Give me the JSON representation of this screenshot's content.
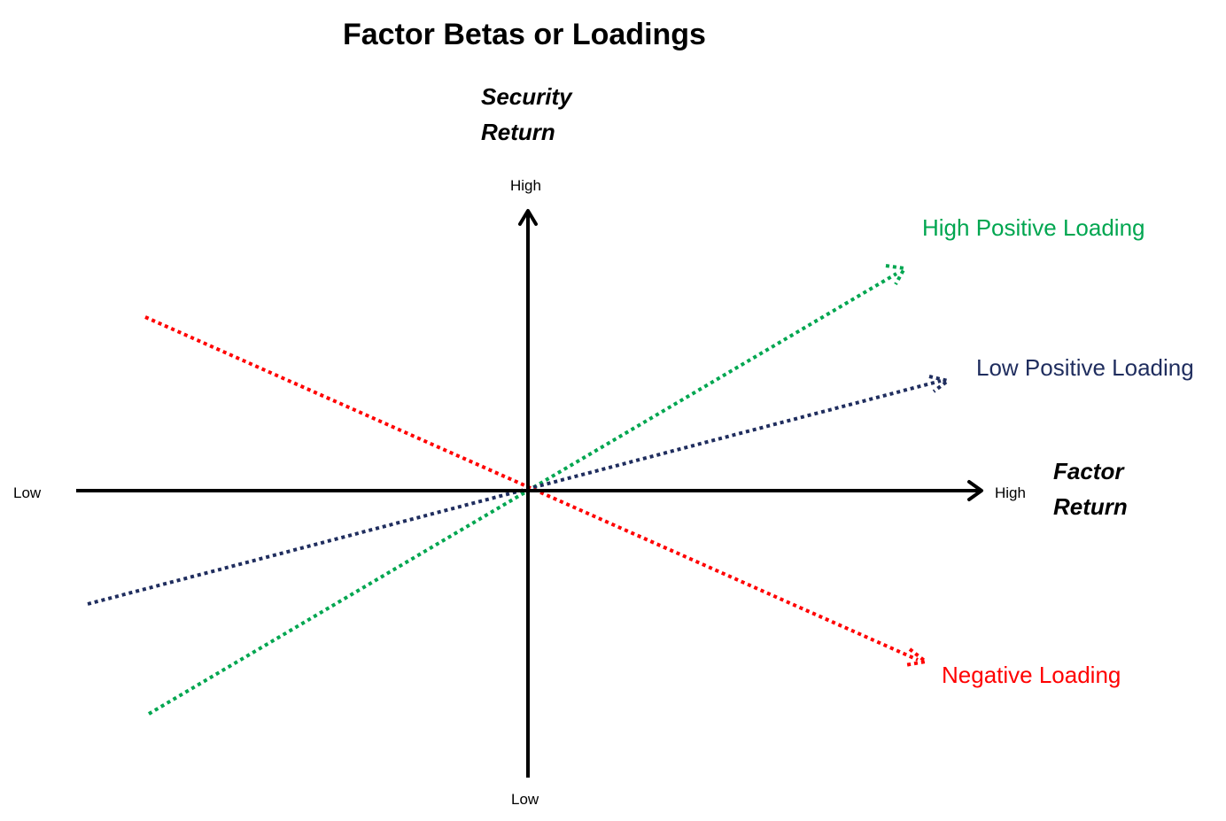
{
  "title": "Factor Betas or Loadings",
  "y_axis": {
    "title_line1": "Security",
    "title_line2": "Return",
    "high_label": "High",
    "low_label": "Low"
  },
  "x_axis": {
    "title_line1": "Factor",
    "title_line2": "Return",
    "high_label": "High",
    "low_label": "Low"
  },
  "loadings": [
    {
      "key": "high-positive",
      "label": "High Positive Loading",
      "color": "#00A650"
    },
    {
      "key": "low-positive",
      "label": "Low Positive Loading",
      "color": "#1F2D5E"
    },
    {
      "key": "negative",
      "label": "Negative Loading",
      "color": "#FF0000"
    }
  ]
}
